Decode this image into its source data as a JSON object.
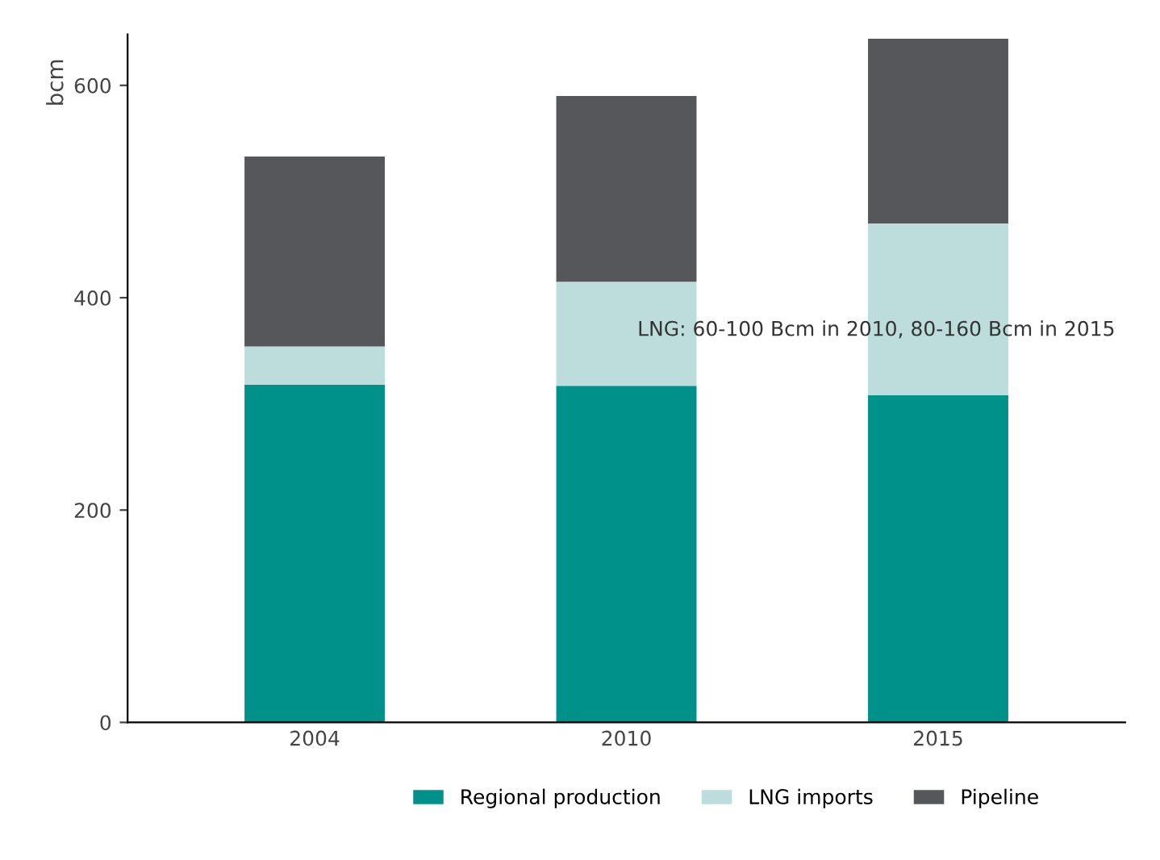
{
  "chart_data": {
    "type": "bar",
    "stacked": true,
    "ylabel": "bcm",
    "categories": [
      "2004",
      "2010",
      "2015"
    ],
    "series": [
      {
        "name": "Regional production",
        "color": "#00918a",
        "values": [
          318,
          317,
          308
        ]
      },
      {
        "name": "LNG imports",
        "color": "#bddcdc",
        "values": [
          36,
          98,
          162
        ]
      },
      {
        "name": "Pipeline",
        "color": "#55575b",
        "values": [
          179,
          175,
          174
        ]
      }
    ],
    "ylim": [
      0,
      648
    ],
    "yticks": [
      0,
      200,
      400,
      600
    ],
    "grid": false,
    "legend": "bottom",
    "annotations": [
      "LNG: 60-100 Bcm in 2010, 80-160 Bcm in 2015"
    ]
  }
}
